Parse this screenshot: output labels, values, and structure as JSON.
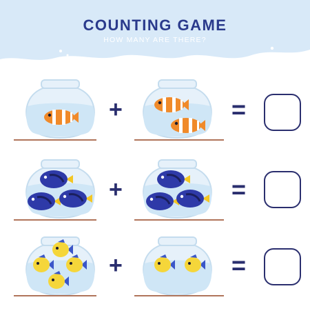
{
  "header": {
    "title": "COUNTING GAME",
    "subtitle": "HOW MANY ARE THERE?",
    "background_color": "#d8e9f8"
  },
  "colors": {
    "ink": "#2a2e6e",
    "shelf": "#b0745a",
    "bowl_water": "#cfe6f6"
  },
  "rows": [
    {
      "fish_type": "clownfish-icon",
      "left_count": 1,
      "right_count": 2,
      "plus": "+",
      "equals": "="
    },
    {
      "fish_type": "blue-tang-icon",
      "left_count": 3,
      "right_count": 3,
      "plus": "+",
      "equals": "="
    },
    {
      "fish_type": "yellow-fish-icon",
      "left_count": 4,
      "right_count": 2,
      "plus": "+",
      "equals": "="
    }
  ]
}
